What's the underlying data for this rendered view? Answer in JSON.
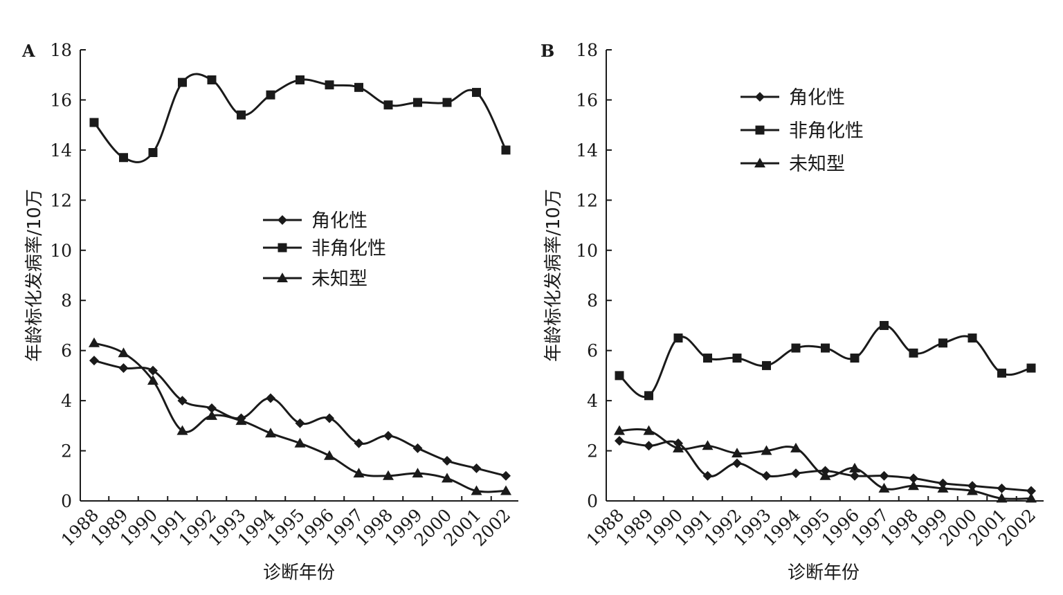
{
  "chart_data": [
    {
      "panel_label": "A",
      "type": "line",
      "ylabel": "年龄标化发病率/10万",
      "xlabel": "诊断年份",
      "ylim": [
        0,
        18
      ],
      "yticks": [
        "0",
        "2",
        "4",
        "6",
        "8",
        "10",
        "12",
        "14",
        "16",
        "18"
      ],
      "categories": [
        "1988",
        "1989",
        "1990",
        "1991",
        "1992",
        "1993",
        "1994",
        "1995",
        "1996",
        "1997",
        "1998",
        "1999",
        "2000",
        "2001",
        "2002"
      ],
      "legend_position": "center",
      "series": [
        {
          "name": "角化性",
          "marker": "diamond",
          "values": [
            5.6,
            5.3,
            5.2,
            4.0,
            3.7,
            3.3,
            4.1,
            3.1,
            3.3,
            2.3,
            2.6,
            2.1,
            1.6,
            1.3,
            1.0
          ]
        },
        {
          "name": "非角化性",
          "marker": "square",
          "values": [
            15.1,
            13.7,
            13.9,
            16.7,
            16.8,
            15.4,
            16.2,
            16.8,
            16.6,
            16.5,
            15.8,
            15.9,
            15.9,
            16.3,
            14.0
          ]
        },
        {
          "name": "未知型",
          "marker": "triangle",
          "values": [
            6.3,
            5.9,
            4.8,
            2.8,
            3.4,
            3.2,
            2.7,
            2.3,
            1.8,
            1.1,
            1.0,
            1.1,
            0.9,
            0.4,
            0.4
          ]
        }
      ]
    },
    {
      "panel_label": "B",
      "type": "line",
      "ylabel": "年龄标化发病率/10万",
      "xlabel": "诊断年份",
      "ylim": [
        0,
        18
      ],
      "yticks": [
        "0",
        "2",
        "4",
        "6",
        "8",
        "10",
        "12",
        "14",
        "16",
        "18"
      ],
      "categories": [
        "1988",
        "1989",
        "1990",
        "1991",
        "1992",
        "1993",
        "1994",
        "1995",
        "1996",
        "1997",
        "1998",
        "1999",
        "2000",
        "2001",
        "2002"
      ],
      "legend_position": "top-left",
      "series": [
        {
          "name": "角化性",
          "marker": "diamond",
          "values": [
            2.4,
            2.2,
            2.3,
            1.0,
            1.5,
            1.0,
            1.1,
            1.2,
            1.0,
            1.0,
            0.9,
            0.7,
            0.6,
            0.5,
            0.4
          ]
        },
        {
          "name": "非角化性",
          "marker": "square",
          "values": [
            5.0,
            4.2,
            6.5,
            5.7,
            5.7,
            5.4,
            6.1,
            6.1,
            5.7,
            7.0,
            5.9,
            6.3,
            6.5,
            5.1,
            5.3
          ]
        },
        {
          "name": "未知型",
          "marker": "triangle",
          "values": [
            2.8,
            2.8,
            2.1,
            2.2,
            1.9,
            2.0,
            2.1,
            1.0,
            1.3,
            0.5,
            0.6,
            0.5,
            0.4,
            0.1,
            0.1
          ]
        }
      ]
    }
  ]
}
